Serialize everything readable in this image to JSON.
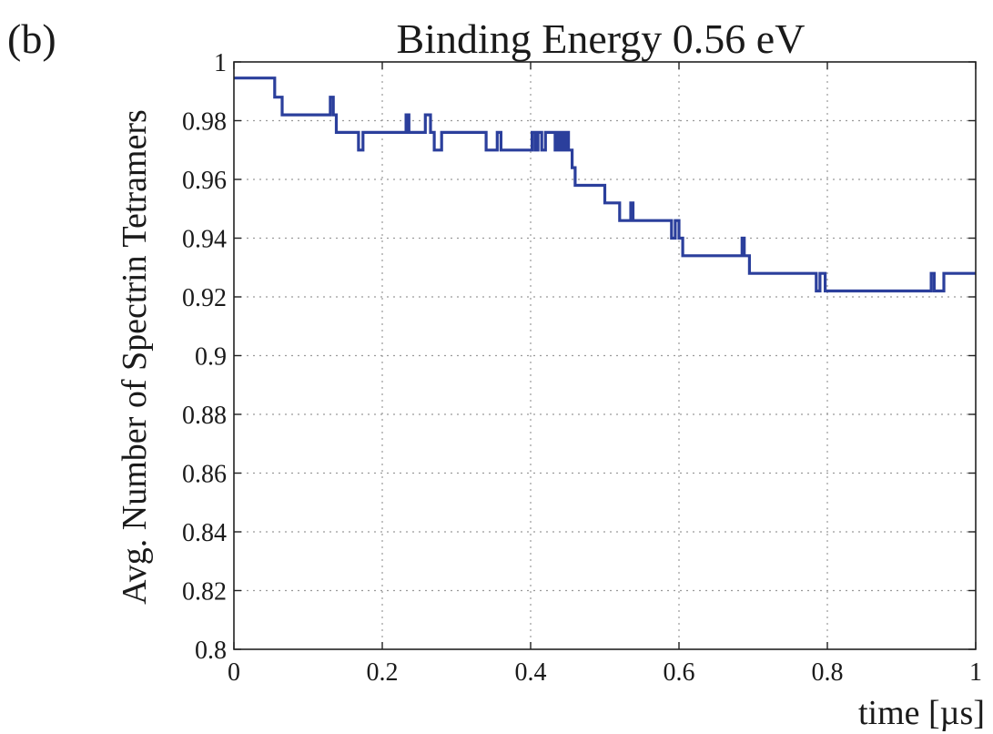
{
  "panel_label": "(b)",
  "chart_data": {
    "type": "line",
    "title": "Binding Energy 0.56 eV",
    "xlabel": "time [µs]",
    "ylabel": "Avg. Number of Spectrin Tetramers",
    "xlim": [
      0,
      1
    ],
    "ylim": [
      0.8,
      1
    ],
    "xticks": [
      "0",
      "0.2",
      "0.4",
      "0.6",
      "0.8",
      "1"
    ],
    "yticks": [
      "0.8",
      "0.82",
      "0.84",
      "0.86",
      "0.88",
      "0.9",
      "0.92",
      "0.94",
      "0.96",
      "0.98",
      "1"
    ],
    "grid": true,
    "line_color": "#2b3f9c",
    "series": [
      {
        "x": [
          0,
          0.055,
          0.055,
          0.065,
          0.065,
          0.072,
          0.072,
          0.13,
          0.13,
          0.134,
          0.134,
          0.138,
          0.138,
          0.168,
          0.168,
          0.174,
          0.174,
          0.232,
          0.232,
          0.236,
          0.236,
          0.258,
          0.258,
          0.265,
          0.265,
          0.27,
          0.27,
          0.28,
          0.28,
          0.34,
          0.34,
          0.355,
          0.355,
          0.36,
          0.36,
          0.402,
          0.402,
          0.406,
          0.406,
          0.41,
          0.41,
          0.415,
          0.415,
          0.42,
          0.42,
          0.433,
          0.433,
          0.436,
          0.436,
          0.439,
          0.439,
          0.442,
          0.442,
          0.445,
          0.445,
          0.448,
          0.448,
          0.451,
          0.451,
          0.456,
          0.456,
          0.46,
          0.46,
          0.465,
          0.465,
          0.47,
          0.47,
          0.5,
          0.5,
          0.52,
          0.52,
          0.535,
          0.535,
          0.538,
          0.538,
          0.542,
          0.542,
          0.59,
          0.59,
          0.595,
          0.595,
          0.6,
          0.6,
          0.605,
          0.605,
          0.625,
          0.625,
          0.685,
          0.685,
          0.688,
          0.688,
          0.695,
          0.695,
          0.785,
          0.785,
          0.79,
          0.79,
          0.797,
          0.797,
          0.8,
          0.8,
          0.94,
          0.94,
          0.944,
          0.944,
          0.957,
          0.957,
          1.0
        ],
        "y": [
          0.9945,
          0.9945,
          0.988,
          0.988,
          0.982,
          0.982,
          0.982,
          0.982,
          0.988,
          0.988,
          0.982,
          0.982,
          0.976,
          0.976,
          0.97,
          0.97,
          0.976,
          0.976,
          0.982,
          0.982,
          0.976,
          0.976,
          0.982,
          0.982,
          0.976,
          0.976,
          0.97,
          0.97,
          0.976,
          0.976,
          0.97,
          0.97,
          0.976,
          0.976,
          0.97,
          0.97,
          0.976,
          0.976,
          0.97,
          0.97,
          0.976,
          0.976,
          0.97,
          0.97,
          0.976,
          0.976,
          0.97,
          0.97,
          0.976,
          0.976,
          0.97,
          0.97,
          0.976,
          0.976,
          0.97,
          0.97,
          0.976,
          0.976,
          0.97,
          0.97,
          0.964,
          0.964,
          0.958,
          0.958,
          0.958,
          0.958,
          0.958,
          0.958,
          0.952,
          0.952,
          0.946,
          0.946,
          0.952,
          0.952,
          0.946,
          0.946,
          0.946,
          0.946,
          0.94,
          0.94,
          0.946,
          0.946,
          0.94,
          0.94,
          0.934,
          0.934,
          0.934,
          0.934,
          0.94,
          0.94,
          0.934,
          0.934,
          0.928,
          0.928,
          0.922,
          0.922,
          0.928,
          0.928,
          0.922,
          0.922,
          0.922,
          0.922,
          0.928,
          0.928,
          0.922,
          0.922,
          0.928,
          0.928
        ]
      }
    ]
  }
}
